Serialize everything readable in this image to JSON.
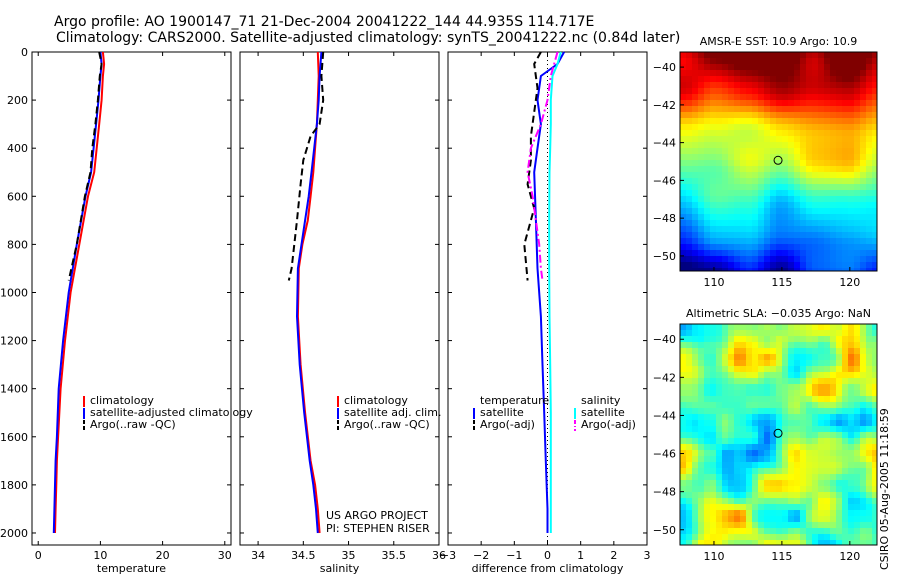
{
  "header": {
    "title_line1": "Argo profile: AO 1900147_71 21-Dec-2004 20041222_144 44.935S 114.717E",
    "title_line2": "Climatology: CARS2000. Satellite-adjusted climatology: synTS_20041222.nc (0.84d later)"
  },
  "credits": {
    "project": "US ARGO PROJECT",
    "pi": "PI: STEPHEN RISER",
    "side_note": "CSIRO 05-Aug-2005 11:18:59"
  },
  "colors": {
    "climatology": "#ff0000",
    "satellite": "#0000ff",
    "argo": "#000000",
    "sal_satellite": "#00ffff",
    "sal_argo": "#ff00ff"
  },
  "chart_data": [
    {
      "type": "line",
      "xlabel": "temperature",
      "ylabel": "",
      "xlim": [
        -1,
        31
      ],
      "ylim": [
        2050,
        0
      ],
      "xticks": [
        0,
        10,
        20,
        30
      ],
      "yticks": [
        0,
        200,
        400,
        600,
        800,
        1000,
        1200,
        1400,
        1600,
        1800,
        2000
      ],
      "legend": [
        "climatology",
        "satellite-adjusted climatology",
        "Argo(..raw -QC)"
      ],
      "series": [
        {
          "name": "climatology",
          "color": "#ff0000",
          "dash": "solid",
          "x": [
            10.4,
            10.6,
            10.4,
            10.2,
            9.8,
            9.4,
            9.0,
            8.0,
            6.6,
            5.2,
            4.3,
            3.6,
            3.2,
            3.0,
            2.9,
            2.8,
            2.7
          ],
          "y": [
            0,
            50,
            100,
            200,
            300,
            400,
            500,
            600,
            800,
            1000,
            1200,
            1400,
            1600,
            1700,
            1800,
            1900,
            2000
          ]
        },
        {
          "name": "satellite-adjusted climatology",
          "color": "#0000ff",
          "dash": "solid",
          "x": [
            10.0,
            10.2,
            10.0,
            9.7,
            9.3,
            8.9,
            8.5,
            7.6,
            6.2,
            4.9,
            4.0,
            3.3,
            3.0,
            2.8,
            2.7,
            2.6,
            2.5
          ],
          "y": [
            0,
            50,
            100,
            200,
            300,
            400,
            500,
            600,
            800,
            1000,
            1200,
            1400,
            1600,
            1700,
            1800,
            1900,
            2000
          ]
        },
        {
          "name": "Argo(..raw -QC)",
          "color": "#000000",
          "dash": "dash",
          "x": [
            9.8,
            10.2,
            9.9,
            9.6,
            9.2,
            8.7,
            8.4,
            7.5,
            6.2,
            4.9
          ],
          "y": [
            0,
            50,
            100,
            200,
            300,
            400,
            500,
            600,
            800,
            950
          ]
        }
      ]
    },
    {
      "type": "line",
      "xlabel": "salinity",
      "ylabel": "",
      "xlim": [
        33.8,
        36.0
      ],
      "ylim": [
        2050,
        0
      ],
      "xticks": [
        34,
        34.5,
        35,
        35.5,
        36
      ],
      "yticks": [
        0,
        200,
        400,
        600,
        800,
        1000,
        1200,
        1400,
        1600,
        1800,
        2000
      ],
      "legend": [
        "climatology",
        "satellite adj. clim.",
        "Argo(..raw -QC)"
      ],
      "series": [
        {
          "name": "climatology",
          "color": "#ff0000",
          "dash": "solid",
          "x": [
            34.66,
            34.67,
            34.66,
            34.65,
            34.63,
            34.61,
            34.58,
            34.55,
            34.49,
            34.45,
            34.44,
            34.47,
            34.52,
            34.58,
            34.63,
            34.66,
            34.68
          ],
          "y": [
            0,
            100,
            200,
            300,
            400,
            500,
            600,
            700,
            800,
            900,
            1100,
            1300,
            1500,
            1700,
            1800,
            1900,
            2000
          ]
        },
        {
          "name": "satellite adj. clim.",
          "color": "#0000ff",
          "dash": "solid",
          "x": [
            34.7,
            34.68,
            34.67,
            34.65,
            34.62,
            34.59,
            34.56,
            34.52,
            34.48,
            34.44,
            34.43,
            34.46,
            34.51,
            34.57,
            34.61,
            34.64,
            34.66
          ],
          "y": [
            0,
            100,
            200,
            300,
            400,
            500,
            600,
            700,
            800,
            900,
            1100,
            1300,
            1500,
            1700,
            1800,
            1900,
            2000
          ]
        },
        {
          "name": "Argo(..raw -QC)",
          "color": "#000000",
          "dash": "dash",
          "x": [
            34.72,
            34.7,
            34.72,
            34.68,
            34.58,
            34.5,
            34.47,
            34.43,
            34.4,
            34.37,
            34.34
          ],
          "y": [
            0,
            100,
            200,
            300,
            350,
            450,
            550,
            700,
            800,
            900,
            950
          ]
        }
      ]
    },
    {
      "type": "line",
      "xlabel": "difference from climatology",
      "ylabel": "",
      "xlim": [
        -3,
        3
      ],
      "ylim": [
        2050,
        0
      ],
      "xticks": [
        -3,
        -2,
        -1,
        0,
        1,
        2,
        3
      ],
      "yticks": [
        0,
        200,
        400,
        600,
        800,
        1000,
        1200,
        1400,
        1600,
        1800,
        2000
      ],
      "legend": [
        "temperature",
        "satellite",
        "Argo(-adj)",
        "salinity",
        "satellite",
        "Argo(-adj)"
      ],
      "series": [
        {
          "name": "satellite",
          "color": "#0000ff",
          "dash": "solid",
          "x": [
            0.5,
            0.3,
            -0.2,
            -0.3,
            -0.2,
            -0.3,
            -0.4,
            -0.35,
            -0.3,
            -0.2,
            -0.15,
            -0.1,
            -0.05,
            0.0,
            0.0
          ],
          "y": [
            0,
            50,
            100,
            200,
            300,
            400,
            500,
            700,
            900,
            1100,
            1300,
            1500,
            1700,
            1900,
            2000
          ]
        },
        {
          "name": "Argo(-adj)",
          "color": "#000000",
          "dash": "dash",
          "x": [
            -0.2,
            -0.4,
            -0.3,
            -0.4,
            -0.5,
            -0.5,
            -0.6,
            -0.4,
            -0.7,
            -0.6
          ],
          "y": [
            0,
            50,
            150,
            250,
            350,
            450,
            550,
            650,
            800,
            950
          ]
        },
        {
          "name": "satellite",
          "color": "#00ffff",
          "dash": "solid",
          "x": [
            0.4,
            0.3,
            0.15,
            0.1,
            0.1,
            0.08,
            0.06,
            0.05,
            0.05,
            0.06,
            0.08,
            0.1,
            0.1,
            0.1,
            0.1
          ],
          "y": [
            0,
            50,
            100,
            200,
            300,
            400,
            500,
            700,
            900,
            1100,
            1300,
            1500,
            1700,
            1900,
            2000
          ]
        },
        {
          "name": "Argo(-adj)",
          "color": "#ff00ff",
          "dash": "dashdot",
          "x": [
            0.3,
            0.1,
            0.0,
            -0.2,
            -0.5,
            -0.6,
            -0.45,
            -0.35,
            -0.25,
            -0.2,
            -0.15
          ],
          "y": [
            0,
            100,
            200,
            300,
            400,
            500,
            600,
            700,
            800,
            900,
            950
          ]
        }
      ]
    },
    {
      "type": "heatmap",
      "title": "AMSR-E SST: 10.9 Argo: 10.9",
      "xlim": [
        107.5,
        122
      ],
      "ylim": [
        -50.8,
        -39.2
      ],
      "xticks": [
        110,
        115,
        120
      ],
      "yticks": [
        -40,
        -42,
        -44,
        -46,
        -48,
        -50
      ],
      "marker": {
        "lon": 114.717,
        "lat": -44.935
      },
      "colormap": "jet"
    },
    {
      "type": "heatmap",
      "title": "Altimetric SLA: -0.035 Argo: NaN",
      "xlim": [
        107.5,
        122
      ],
      "ylim": [
        -50.8,
        -39.2
      ],
      "xticks": [
        110,
        115,
        120
      ],
      "yticks": [
        -40,
        -42,
        -44,
        -46,
        -48,
        -50
      ],
      "marker": {
        "lon": 114.717,
        "lat": -44.935
      },
      "colormap": "jet"
    }
  ]
}
